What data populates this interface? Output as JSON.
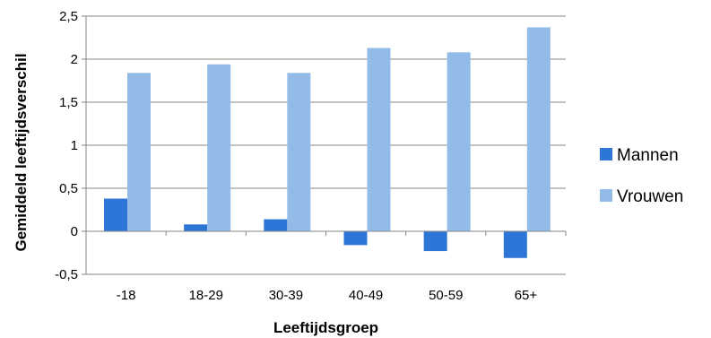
{
  "chart_data": {
    "type": "bar",
    "title": "",
    "xlabel": "Leeftijdsgroep",
    "ylabel": "Gemiddeld leeftijdsverschil",
    "categories": [
      "-18",
      "18-29",
      "30-39",
      "40-49",
      "50-59",
      "65+"
    ],
    "series": [
      {
        "name": "Mannen",
        "color": "#2e75d8",
        "values": [
          0.38,
          0.08,
          0.14,
          -0.16,
          -0.23,
          -0.31
        ]
      },
      {
        "name": "Vrouwen",
        "color": "#93bbe8",
        "values": [
          1.84,
          1.94,
          1.84,
          2.13,
          2.08,
          2.37
        ]
      }
    ],
    "ylim": [
      -0.5,
      2.5
    ],
    "yticks": [
      -0.5,
      0,
      0.5,
      1,
      1.5,
      2,
      2.5
    ],
    "ytick_labels": [
      "-0,5",
      "0",
      "0,5",
      "1",
      "1,5",
      "2",
      "2,5"
    ],
    "grid": true,
    "legend_position": "right"
  }
}
